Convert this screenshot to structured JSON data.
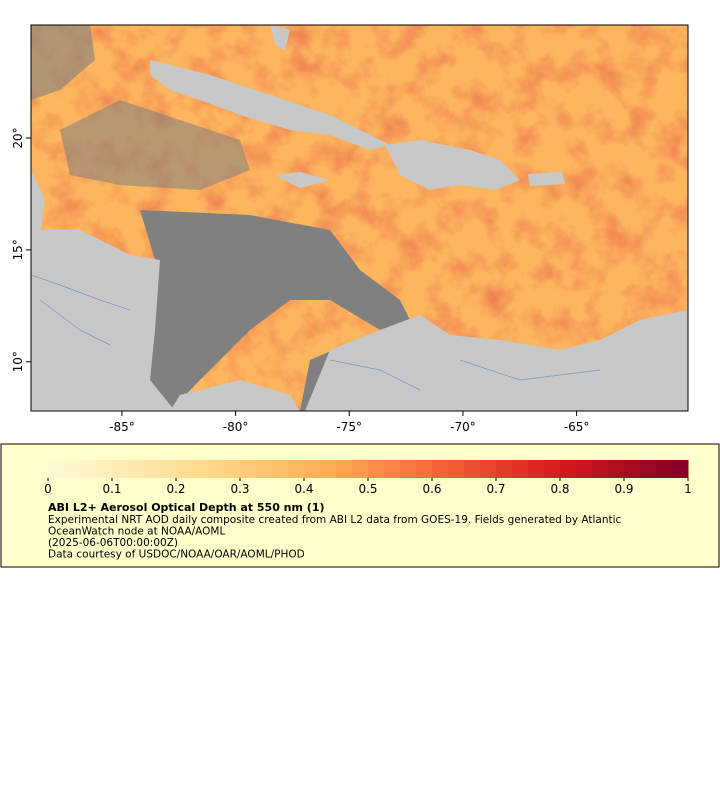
{
  "map": {
    "xlim": [
      -89,
      -60.1
    ],
    "ylim": [
      7.8,
      25.05
    ],
    "xticks": [
      {
        "value": -85,
        "label": "-85°"
      },
      {
        "value": -80,
        "label": "-80°"
      },
      {
        "value": -75,
        "label": "-75°"
      },
      {
        "value": -70,
        "label": "-70°"
      },
      {
        "value": -65,
        "label": "-65°"
      }
    ],
    "yticks": [
      {
        "value": 10,
        "label": "10°"
      },
      {
        "value": 15,
        "label": "15°"
      },
      {
        "value": 20,
        "label": "20°"
      }
    ]
  },
  "colorbar": {
    "range": [
      0,
      1
    ],
    "ticks": [
      0,
      0.1,
      0.2,
      0.3,
      0.4,
      0.5,
      0.6,
      0.7,
      0.8,
      0.9,
      1
    ],
    "stops": [
      [
        0,
        "#fffbd6"
      ],
      [
        0.25,
        "#fed98a"
      ],
      [
        0.45,
        "#fdaa50"
      ],
      [
        0.6,
        "#f7693a"
      ],
      [
        0.8,
        "#d7191c"
      ],
      [
        1,
        "#800026"
      ]
    ]
  },
  "legend": {
    "title": "ABI L2+ Aerosol Optical Depth at 550 nm (1)",
    "lines": [
      "Experimental NRT AOD daily composite created from ABI L2 data from GOES-19. Fields generated by Atlantic",
      "OceanWatch node at NOAA/AOML",
      "(2025-06-06T00:00:00Z)",
      "Data courtesy of USDOC/NOAA/OAR/AOML/PHOD"
    ]
  }
}
